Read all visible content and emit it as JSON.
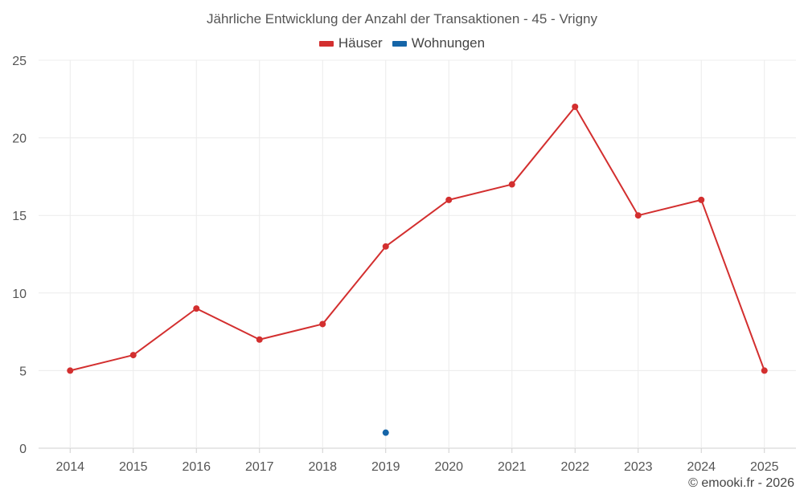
{
  "chart_data": {
    "type": "line",
    "title": "Jährliche Entwicklung der Anzahl der Transaktionen - 45 - Vrigny",
    "xlabel": "",
    "ylabel": "",
    "categories": [
      "2014",
      "2015",
      "2016",
      "2017",
      "2018",
      "2019",
      "2020",
      "2021",
      "2022",
      "2023",
      "2024",
      "2025"
    ],
    "ylim": [
      0,
      25
    ],
    "yticks": [
      0,
      5,
      10,
      15,
      20,
      25
    ],
    "grid": true,
    "legend_position": "top",
    "series": [
      {
        "name": "Häuser",
        "color": "#d32f2f",
        "values": [
          5,
          6,
          9,
          7,
          8,
          13,
          16,
          17,
          22,
          15,
          16,
          5
        ]
      },
      {
        "name": "Wohnungen",
        "color": "#1565a8",
        "values": [
          null,
          null,
          null,
          null,
          null,
          1,
          null,
          null,
          null,
          null,
          null,
          null
        ]
      }
    ]
  },
  "credit": "© emooki.fr - 2026"
}
